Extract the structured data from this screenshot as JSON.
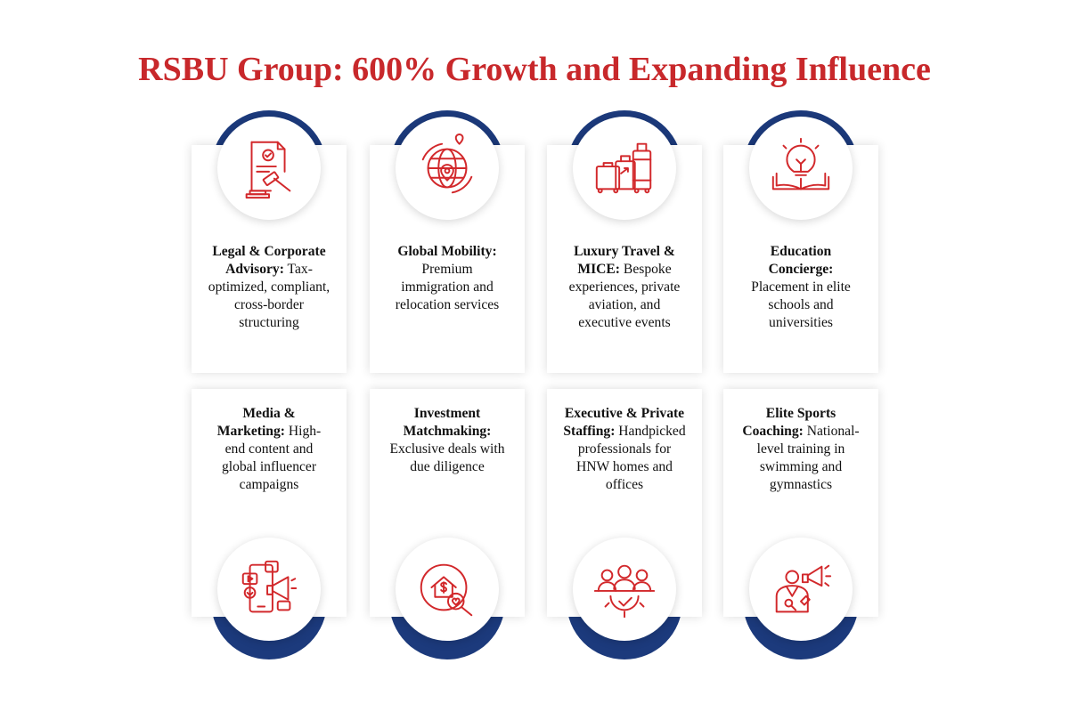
{
  "title": "RSBU Group: 600% Growth and Expanding Influence",
  "colors": {
    "accent": "#c8282b",
    "navy": "#1c3a7c",
    "card": "#ffffff"
  },
  "services": [
    {
      "heading": "Legal & Corporate Advisory:",
      "detail": "Tax-optimized, compliant, cross-border structuring",
      "icon": "gavel-document-icon"
    },
    {
      "heading": "Global Mobility:",
      "detail": "Premium immigration and relocation services",
      "icon": "globe-location-icon"
    },
    {
      "heading": "Luxury Travel & MICE:",
      "detail": "Bespoke experiences, private aviation, and executive events",
      "icon": "luggage-icon"
    },
    {
      "heading": "Education Concierge:",
      "detail": "Placement in elite schools and universities",
      "icon": "lightbulb-book-icon"
    },
    {
      "heading": "Media & Marketing:",
      "detail": "High-end content and global influencer campaigns",
      "icon": "social-media-icon"
    },
    {
      "heading": "Investment Matchmaking:",
      "detail": "Exclusive deals with due diligence",
      "icon": "house-dollar-search-icon"
    },
    {
      "heading": "Executive & Private Staffing:",
      "detail": "Handpicked professionals for HNW homes and offices",
      "icon": "team-gear-icon"
    },
    {
      "heading": "Elite Sports Coaching:",
      "detail": "National-level training in swimming and gymnastics",
      "icon": "coach-megaphone-icon"
    }
  ]
}
